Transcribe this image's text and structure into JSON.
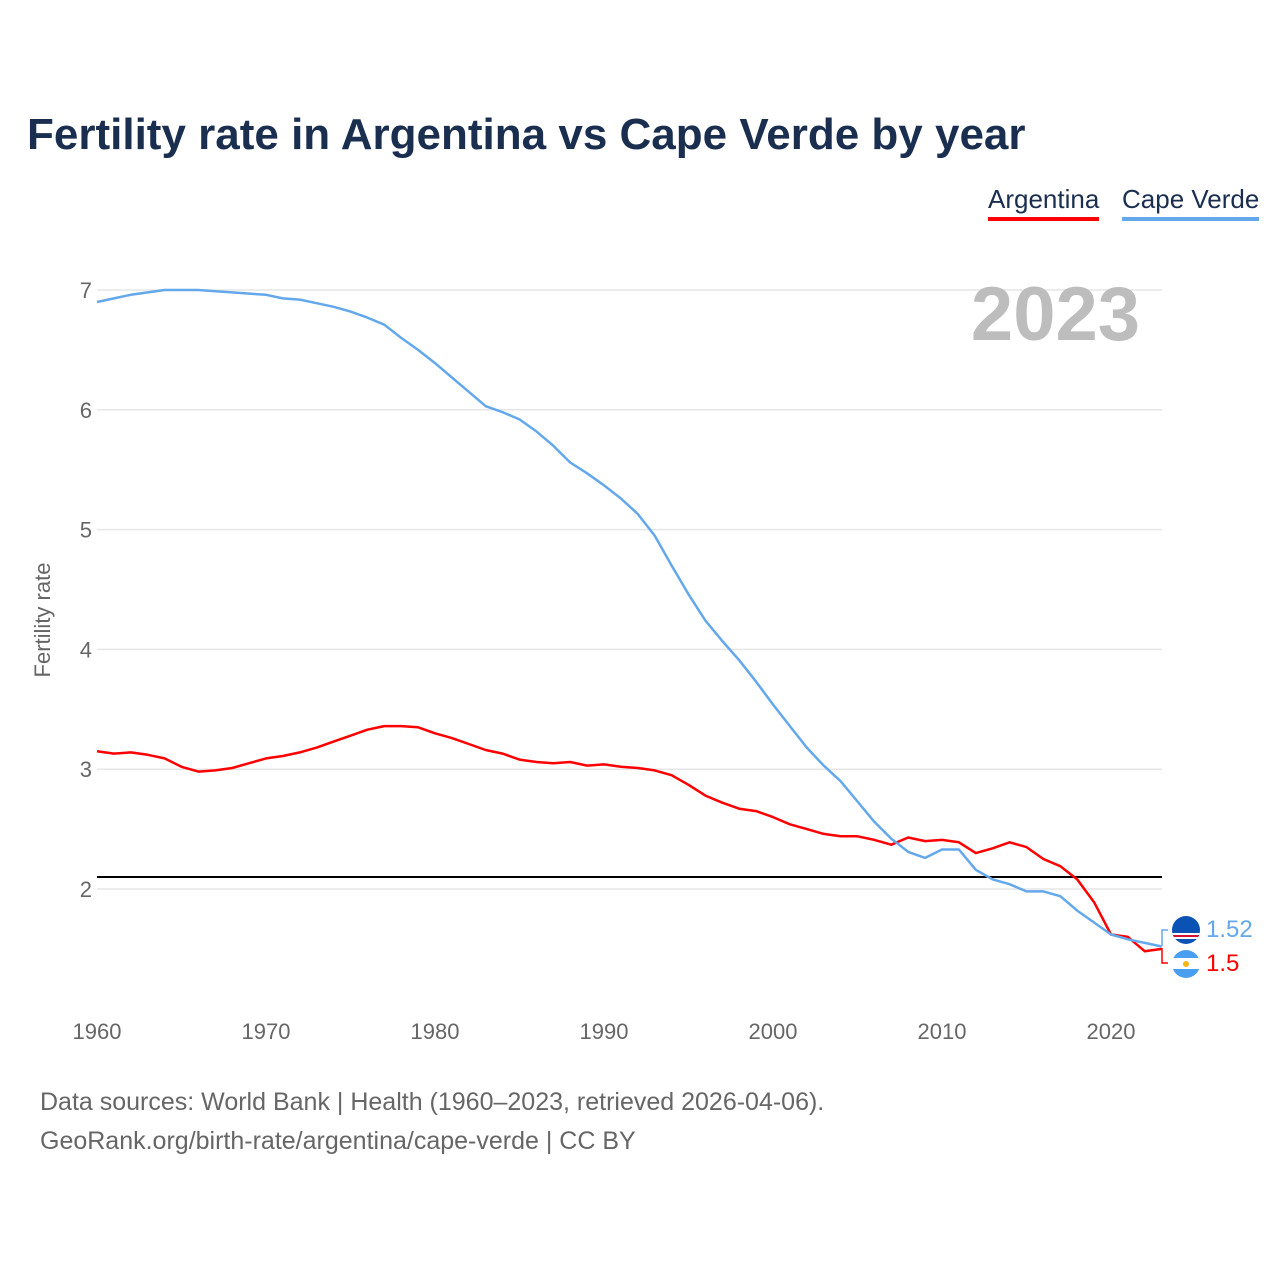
{
  "chart_data": {
    "type": "line",
    "title": "Fertility rate in Argentina vs Cape Verde by year",
    "xlabel": "",
    "ylabel": "Fertility rate",
    "xlim": [
      1960,
      2023
    ],
    "ylim": [
      1.2,
      7.2
    ],
    "x_ticks": [
      "1960",
      "1970",
      "1980",
      "1990",
      "2000",
      "2010",
      "2020"
    ],
    "y_ticks": [
      "2",
      "3",
      "4",
      "5",
      "6",
      "7"
    ],
    "grid": true,
    "legend_placement": "top-right",
    "current_year_label": "2023",
    "reference_line": 2.1,
    "x": [
      1960,
      1961,
      1962,
      1963,
      1964,
      1965,
      1966,
      1967,
      1968,
      1969,
      1970,
      1971,
      1972,
      1973,
      1974,
      1975,
      1976,
      1977,
      1978,
      1979,
      1980,
      1981,
      1982,
      1983,
      1984,
      1985,
      1986,
      1987,
      1988,
      1989,
      1990,
      1991,
      1992,
      1993,
      1994,
      1995,
      1996,
      1997,
      1998,
      1999,
      2000,
      2001,
      2002,
      2003,
      2004,
      2005,
      2006,
      2007,
      2008,
      2009,
      2010,
      2011,
      2012,
      2013,
      2014,
      2015,
      2016,
      2017,
      2018,
      2019,
      2020,
      2021,
      2022,
      2023
    ],
    "series": [
      {
        "name": "Argentina",
        "color": "#ff0000",
        "end_label": "1.5",
        "values": [
          3.15,
          3.13,
          3.14,
          3.12,
          3.09,
          3.02,
          2.98,
          2.99,
          3.01,
          3.05,
          3.09,
          3.11,
          3.14,
          3.18,
          3.23,
          3.28,
          3.33,
          3.36,
          3.36,
          3.35,
          3.3,
          3.26,
          3.21,
          3.16,
          3.13,
          3.08,
          3.06,
          3.05,
          3.06,
          3.03,
          3.04,
          3.02,
          3.01,
          2.99,
          2.95,
          2.87,
          2.78,
          2.72,
          2.67,
          2.65,
          2.6,
          2.54,
          2.5,
          2.46,
          2.44,
          2.44,
          2.41,
          2.37,
          2.43,
          2.4,
          2.41,
          2.39,
          2.3,
          2.34,
          2.39,
          2.35,
          2.25,
          2.19,
          2.08,
          1.89,
          1.62,
          1.6,
          1.48,
          1.5
        ]
      },
      {
        "name": "Cape Verde",
        "color": "#64a8ec",
        "end_label": "1.52",
        "values": [
          6.9,
          6.93,
          6.96,
          6.98,
          7.0,
          7.0,
          7.0,
          6.99,
          6.98,
          6.97,
          6.96,
          6.93,
          6.92,
          6.89,
          6.86,
          6.82,
          6.77,
          6.71,
          6.6,
          6.5,
          6.39,
          6.27,
          6.15,
          6.03,
          5.98,
          5.92,
          5.82,
          5.7,
          5.56,
          5.47,
          5.37,
          5.26,
          5.13,
          4.95,
          4.7,
          4.46,
          4.24,
          4.07,
          3.91,
          3.73,
          3.54,
          3.36,
          3.18,
          3.03,
          2.9,
          2.73,
          2.56,
          2.42,
          2.31,
          2.26,
          2.33,
          2.33,
          2.16,
          2.08,
          2.04,
          1.98,
          1.98,
          1.94,
          1.82,
          1.72,
          1.62,
          1.58,
          1.55,
          1.52
        ]
      }
    ]
  },
  "footer": {
    "line1": "Data sources: World Bank | Health (1960–2023, retrieved 2026-04-06).",
    "line2": "GeoRank.org/birth-rate/argentina/cape-verde | CC BY"
  }
}
